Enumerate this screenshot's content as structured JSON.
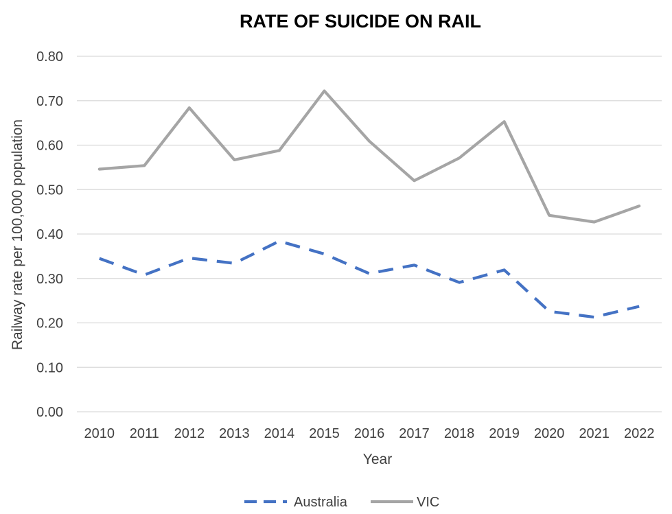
{
  "chart_data": {
    "type": "line",
    "title": "RATE OF SUICIDE ON RAIL",
    "xlabel": "Year",
    "ylabel": "Railway rate per 100,000 population",
    "categories": [
      "2010",
      "2011",
      "2012",
      "2013",
      "2014",
      "2015",
      "2016",
      "2017",
      "2018",
      "2019",
      "2020",
      "2021",
      "2022"
    ],
    "ylim": [
      0,
      0.8
    ],
    "yticks": [
      "0.00",
      "0.10",
      "0.20",
      "0.30",
      "0.40",
      "0.50",
      "0.60",
      "0.70",
      "0.80"
    ],
    "grid": "horizontal",
    "legend_position": "bottom",
    "series": [
      {
        "name": "Australia",
        "color": "#4472C4",
        "style": "dashed",
        "values": [
          0.345,
          0.308,
          0.346,
          0.334,
          0.384,
          0.355,
          0.311,
          0.33,
          0.291,
          0.319,
          0.226,
          0.213,
          0.237
        ]
      },
      {
        "name": "VIC",
        "color": "#A5A5A5",
        "style": "solid",
        "values": [
          0.546,
          0.554,
          0.684,
          0.567,
          0.588,
          0.722,
          0.609,
          0.52,
          0.571,
          0.653,
          0.442,
          0.427,
          0.463
        ]
      }
    ]
  }
}
